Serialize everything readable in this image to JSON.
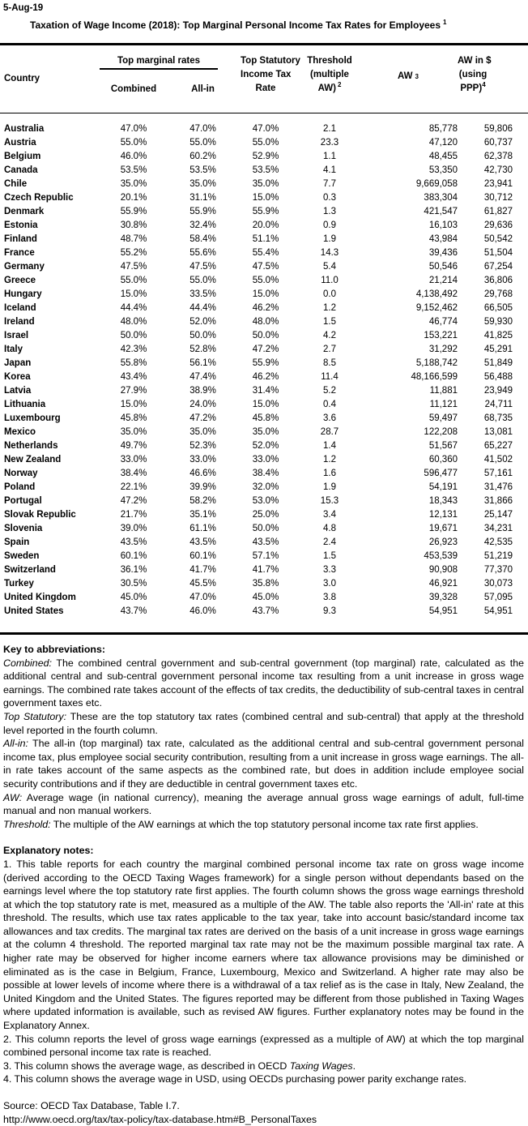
{
  "page": {
    "date": "5-Aug-19",
    "title": "Taxation of Wage Income (2018): Top Marginal Personal Income Tax Rates for Employees",
    "title_sup": "1"
  },
  "table": {
    "header": {
      "country": "Country",
      "top_marginal_rates": "Top marginal rates",
      "combined": "Combined",
      "all_in": "All-in",
      "top_statutory_lines": [
        "Top Statutory",
        "Income Tax",
        "Rate"
      ],
      "threshold_lines": [
        "Threshold",
        "(multiple",
        "AW)"
      ],
      "threshold_sup": "2",
      "aw": "AW",
      "aw_sup": "3",
      "aw_ppp_lines": [
        "AW in $",
        "(using",
        "PPP)"
      ],
      "aw_ppp_sup": "4"
    },
    "rows": [
      {
        "country": "Australia",
        "combined": "47.0%",
        "all_in": "47.0%",
        "top_statutory": "47.0%",
        "threshold": "2.1",
        "aw": "85,778",
        "aw_usd_ppp": "59,806"
      },
      {
        "country": "Austria",
        "combined": "55.0%",
        "all_in": "55.0%",
        "top_statutory": "55.0%",
        "threshold": "23.3",
        "aw": "47,120",
        "aw_usd_ppp": "60,737"
      },
      {
        "country": "Belgium",
        "combined": "46.0%",
        "all_in": "60.2%",
        "top_statutory": "52.9%",
        "threshold": "1.1",
        "aw": "48,455",
        "aw_usd_ppp": "62,378"
      },
      {
        "country": "Canada",
        "combined": "53.5%",
        "all_in": "53.5%",
        "top_statutory": "53.5%",
        "threshold": "4.1",
        "aw": "53,350",
        "aw_usd_ppp": "42,730"
      },
      {
        "country": "Chile",
        "combined": "35.0%",
        "all_in": "35.0%",
        "top_statutory": "35.0%",
        "threshold": "7.7",
        "aw": "9,669,058",
        "aw_usd_ppp": "23,941"
      },
      {
        "country": "Czech Republic",
        "combined": "20.1%",
        "all_in": "31.1%",
        "top_statutory": "15.0%",
        "threshold": "0.3",
        "aw": "383,304",
        "aw_usd_ppp": "30,712"
      },
      {
        "country": "Denmark",
        "combined": "55.9%",
        "all_in": "55.9%",
        "top_statutory": "55.9%",
        "threshold": "1.3",
        "aw": "421,547",
        "aw_usd_ppp": "61,827"
      },
      {
        "country": "Estonia",
        "combined": "30.8%",
        "all_in": "32.4%",
        "top_statutory": "20.0%",
        "threshold": "0.9",
        "aw": "16,103",
        "aw_usd_ppp": "29,636"
      },
      {
        "country": "Finland",
        "combined": "48.7%",
        "all_in": "58.4%",
        "top_statutory": "51.1%",
        "threshold": "1.9",
        "aw": "43,984",
        "aw_usd_ppp": "50,542"
      },
      {
        "country": "France",
        "combined": "55.2%",
        "all_in": "55.6%",
        "top_statutory": "55.4%",
        "threshold": "14.3",
        "aw": "39,436",
        "aw_usd_ppp": "51,504"
      },
      {
        "country": "Germany",
        "combined": "47.5%",
        "all_in": "47.5%",
        "top_statutory": "47.5%",
        "threshold": "5.4",
        "aw": "50,546",
        "aw_usd_ppp": "67,254"
      },
      {
        "country": "Greece",
        "combined": "55.0%",
        "all_in": "55.0%",
        "top_statutory": "55.0%",
        "threshold": "11.0",
        "aw": "21,214",
        "aw_usd_ppp": "36,806"
      },
      {
        "country": "Hungary",
        "combined": "15.0%",
        "all_in": "33.5%",
        "top_statutory": "15.0%",
        "threshold": "0.0",
        "aw": "4,138,492",
        "aw_usd_ppp": "29,768"
      },
      {
        "country": "Iceland",
        "combined": "44.4%",
        "all_in": "44.4%",
        "top_statutory": "46.2%",
        "threshold": "1.2",
        "aw": "9,152,462",
        "aw_usd_ppp": "66,505"
      },
      {
        "country": "Ireland",
        "combined": "48.0%",
        "all_in": "52.0%",
        "top_statutory": "48.0%",
        "threshold": "1.5",
        "aw": "46,774",
        "aw_usd_ppp": "59,930"
      },
      {
        "country": "Israel",
        "combined": "50.0%",
        "all_in": "50.0%",
        "top_statutory": "50.0%",
        "threshold": "4.2",
        "aw": "153,221",
        "aw_usd_ppp": "41,825"
      },
      {
        "country": "Italy",
        "combined": "42.3%",
        "all_in": "52.8%",
        "top_statutory": "47.2%",
        "threshold": "2.7",
        "aw": "31,292",
        "aw_usd_ppp": "45,291"
      },
      {
        "country": "Japan",
        "combined": "55.8%",
        "all_in": "56.1%",
        "top_statutory": "55.9%",
        "threshold": "8.5",
        "aw": "5,188,742",
        "aw_usd_ppp": "51,849"
      },
      {
        "country": "Korea",
        "combined": "43.4%",
        "all_in": "47.4%",
        "top_statutory": "46.2%",
        "threshold": "11.4",
        "aw": "48,166,599",
        "aw_usd_ppp": "56,488"
      },
      {
        "country": "Latvia",
        "combined": "27.9%",
        "all_in": "38.9%",
        "top_statutory": "31.4%",
        "threshold": "5.2",
        "aw": "11,881",
        "aw_usd_ppp": "23,949"
      },
      {
        "country": "Lithuania",
        "combined": "15.0%",
        "all_in": "24.0%",
        "top_statutory": "15.0%",
        "threshold": "0.4",
        "aw": "11,121",
        "aw_usd_ppp": "24,711"
      },
      {
        "country": "Luxembourg",
        "combined": "45.8%",
        "all_in": "47.2%",
        "top_statutory": "45.8%",
        "threshold": "3.6",
        "aw": "59,497",
        "aw_usd_ppp": "68,735"
      },
      {
        "country": "Mexico",
        "combined": "35.0%",
        "all_in": "35.0%",
        "top_statutory": "35.0%",
        "threshold": "28.7",
        "aw": "122,208",
        "aw_usd_ppp": "13,081"
      },
      {
        "country": "Netherlands",
        "combined": "49.7%",
        "all_in": "52.3%",
        "top_statutory": "52.0%",
        "threshold": "1.4",
        "aw": "51,567",
        "aw_usd_ppp": "65,227"
      },
      {
        "country": "New Zealand",
        "combined": "33.0%",
        "all_in": "33.0%",
        "top_statutory": "33.0%",
        "threshold": "1.2",
        "aw": "60,360",
        "aw_usd_ppp": "41,502"
      },
      {
        "country": "Norway",
        "combined": "38.4%",
        "all_in": "46.6%",
        "top_statutory": "38.4%",
        "threshold": "1.6",
        "aw": "596,477",
        "aw_usd_ppp": "57,161"
      },
      {
        "country": "Poland",
        "combined": "22.1%",
        "all_in": "39.9%",
        "top_statutory": "32.0%",
        "threshold": "1.9",
        "aw": "54,191",
        "aw_usd_ppp": "31,476"
      },
      {
        "country": "Portugal",
        "combined": "47.2%",
        "all_in": "58.2%",
        "top_statutory": "53.0%",
        "threshold": "15.3",
        "aw": "18,343",
        "aw_usd_ppp": "31,866"
      },
      {
        "country": "Slovak Republic",
        "combined": "21.7%",
        "all_in": "35.1%",
        "top_statutory": "25.0%",
        "threshold": "3.4",
        "aw": "12,131",
        "aw_usd_ppp": "25,147"
      },
      {
        "country": "Slovenia",
        "combined": "39.0%",
        "all_in": "61.1%",
        "top_statutory": "50.0%",
        "threshold": "4.8",
        "aw": "19,671",
        "aw_usd_ppp": "34,231"
      },
      {
        "country": "Spain",
        "combined": "43.5%",
        "all_in": "43.5%",
        "top_statutory": "43.5%",
        "threshold": "2.4",
        "aw": "26,923",
        "aw_usd_ppp": "42,535"
      },
      {
        "country": "Sweden",
        "combined": "60.1%",
        "all_in": "60.1%",
        "top_statutory": "57.1%",
        "threshold": "1.5",
        "aw": "453,539",
        "aw_usd_ppp": "51,219"
      },
      {
        "country": "Switzerland",
        "combined": "36.1%",
        "all_in": "41.7%",
        "top_statutory": "41.7%",
        "threshold": "3.3",
        "aw": "90,908",
        "aw_usd_ppp": "77,370"
      },
      {
        "country": "Turkey",
        "combined": "30.5%",
        "all_in": "45.5%",
        "top_statutory": "35.8%",
        "threshold": "3.0",
        "aw": "46,921",
        "aw_usd_ppp": "30,073"
      },
      {
        "country": "United Kingdom",
        "combined": "45.0%",
        "all_in": "47.0%",
        "top_statutory": "45.0%",
        "threshold": "3.8",
        "aw": "39,328",
        "aw_usd_ppp": "57,095"
      },
      {
        "country": "United States",
        "combined": "43.7%",
        "all_in": "46.0%",
        "top_statutory": "43.7%",
        "threshold": "9.3",
        "aw": "54,951",
        "aw_usd_ppp": "54,951"
      }
    ]
  },
  "key": {
    "heading": "Key to abbreviations:",
    "items": [
      {
        "term": "Combined:",
        "definition": " The combined central government and sub-central government (top marginal) rate, calculated as the additional central and sub-central government personal income tax resulting from a unit increase in gross wage earnings. The combined rate takes account of the effects of tax credits, the deductibility of sub-central taxes in central government taxes etc."
      },
      {
        "term": "Top Statutory:",
        "definition": " These are the top statutory tax rates (combined central and sub-central) that apply at the threshold level reported in the fourth column."
      },
      {
        "term": "All-in:",
        "definition": " The all-in (top marginal) tax rate, calculated as the additional central and sub-central government personal income tax, plus employee social security contribution, resulting from a unit increase in gross wage earnings. The all-in rate takes account of the same aspects as the combined rate, but does in addition include employee social security contributions and if they are deductible in central government taxes etc."
      },
      {
        "term": "AW:",
        "definition": " Average wage (in national currency), meaning the average annual gross wage earnings of adult, full-time manual and non manual workers."
      },
      {
        "term": "Threshold:",
        "definition": " The multiple of the AW earnings at which the top statutory personal income tax rate first applies."
      }
    ]
  },
  "notes": {
    "heading": "Explanatory notes:",
    "note1": "1. This table reports for each country the marginal combined personal income tax rate on gross wage income (derived according to the OECD Taxing Wages framework) for a single person without dependants based on the earnings level where the top statutory rate first applies. The fourth column shows the gross wage earnings threshold at which the top statutory rate is met, measured as a multiple of the AW. The table also reports the 'All-in' rate at this threshold. The results, which use tax rates applicable to the tax year, take into account basic/standard income tax allowances and tax credits. The marginal tax rates are derived on the basis of a unit increase in gross wage earnings at the column 4 threshold. The reported marginal tax rate may not be the maximum possible marginal tax rate. A higher rate may be observed for higher income earners where tax allowance provisions may be diminished or eliminated as is the case in Belgium, France, Luxembourg, Mexico and Switzerland. A higher rate may also be possible at lower levels of income where there is a withdrawal of a tax relief as is the case in Italy, New Zealand, the United Kingdom and the United States. The figures reported may be different from those published in Taxing Wages where updated information is available, such as revised AW figures. Further explanatory notes may be found in the Explanatory Annex.",
    "note2": "2. This column reports the level of gross wage earnings (expressed as a multiple of AW) at which the top marginal combined personal income tax rate is reached.",
    "note3_prefix": "3. This column shows the average wage, as described in OECD ",
    "note3_italic": "Taxing Wages",
    "note3_suffix": ".",
    "note4": "4. This column shows the average wage in USD, using OECDs purchasing power parity exchange rates."
  },
  "source": {
    "line1": "Source: OECD Tax Database, Table I.7.",
    "line2": "http://www.oecd.org/tax/tax-policy/tax-database.htm#B_PersonalTaxes"
  }
}
